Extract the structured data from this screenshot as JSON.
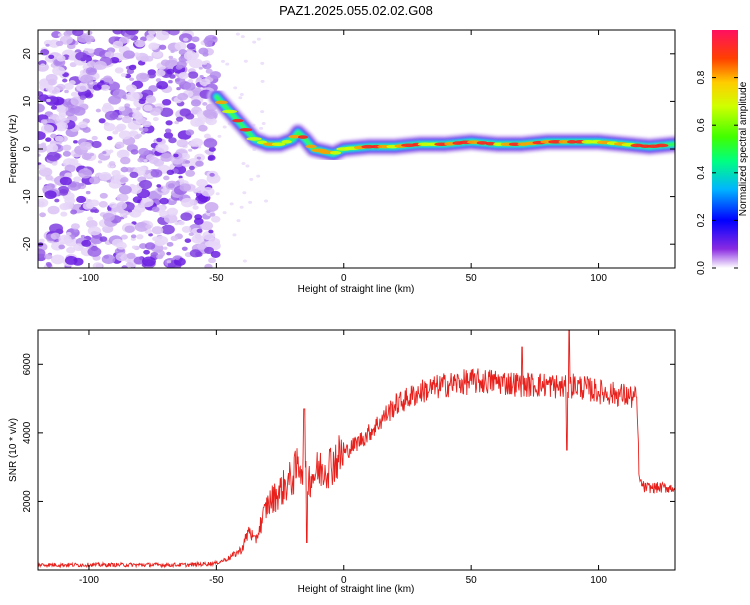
{
  "title": "PAZ1.2025.055.02.02.G08",
  "chart_data": [
    {
      "type": "heatmap",
      "xlabel": "Height of straight line (km)",
      "ylabel": "Frequency (Hz)",
      "xlim": [
        -120,
        130
      ],
      "ylim": [
        -25,
        25
      ],
      "xticks": [
        -100,
        -50,
        0,
        50,
        100
      ],
      "yticks": [
        20,
        10,
        0,
        -10,
        -20
      ],
      "colorbar_label": "Normalized spectral amplitude",
      "colorbar_ticks": [
        0.8,
        0.6,
        0.4,
        0.2,
        0.0
      ],
      "colorbar_tick_labels": [
        "0.8",
        "0.6",
        "0.4",
        "0.2",
        "0.0"
      ],
      "noise_region_x": [
        -120,
        -50
      ],
      "ridge": {
        "x": [
          -50,
          -45,
          -40,
          -35,
          -30,
          -25,
          -20,
          -18,
          -15,
          -12,
          -8,
          -4,
          0,
          10,
          20,
          30,
          40,
          50,
          60,
          70,
          80,
          90,
          100,
          110,
          120,
          130
        ],
        "y": [
          11,
          8,
          5,
          2,
          1,
          1,
          2,
          3.5,
          2,
          0,
          -0.5,
          -1,
          0,
          0.5,
          0.5,
          1,
          1,
          1.5,
          1,
          1,
          1.5,
          1.5,
          1.5,
          1,
          0.5,
          1
        ]
      }
    },
    {
      "type": "line",
      "xlabel": "Height of straight line (km)",
      "ylabel": "SNR (10 * v/v)",
      "xlim": [
        -120,
        130
      ],
      "ylim": [
        0,
        7000
      ],
      "xticks": [
        -100,
        -50,
        0,
        50,
        100
      ],
      "yticks": [
        2000,
        4000,
        6000
      ],
      "color": "#e8201c",
      "envelope": {
        "x": [
          -120,
          -60,
          -50,
          -45,
          -40,
          -37,
          -35,
          -30,
          -25,
          -20,
          -17,
          -15,
          -10,
          -5,
          0,
          10,
          20,
          30,
          40,
          50,
          60,
          70,
          80,
          88,
          90,
          100,
          110,
          115,
          116,
          118,
          130
        ],
        "y": [
          150,
          150,
          200,
          350,
          600,
          1200,
          800,
          1900,
          2300,
          2700,
          3200,
          2600,
          2900,
          3100,
          3400,
          4000,
          4800,
          5200,
          5400,
          5500,
          5500,
          5400,
          5400,
          5300,
          5400,
          5200,
          5100,
          5000,
          2600,
          2400,
          2400
        ]
      },
      "spikes": [
        {
          "x": -15.5,
          "y": 4700
        },
        {
          "x": -14.5,
          "y": 800
        },
        {
          "x": 88.5,
          "y": 7000
        },
        {
          "x": 87.5,
          "y": 3500
        },
        {
          "x": 70,
          "y": 6500
        }
      ]
    }
  ]
}
